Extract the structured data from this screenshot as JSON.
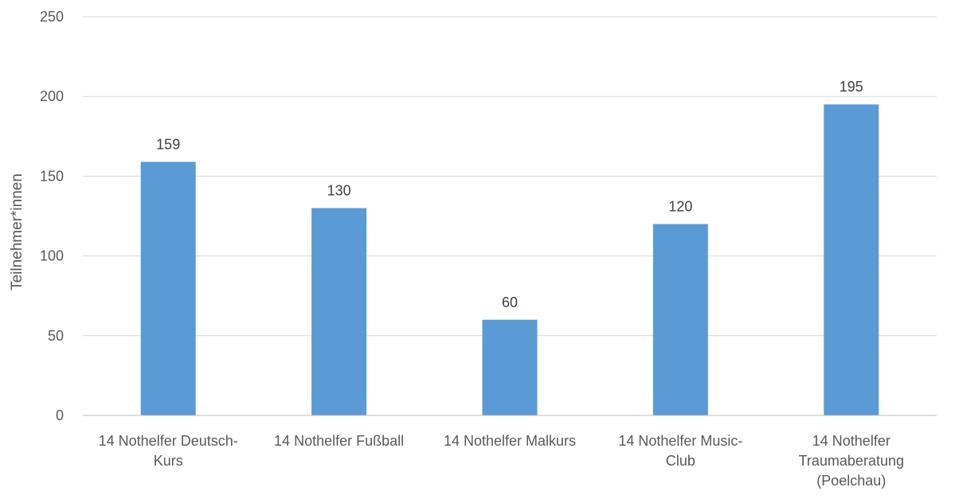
{
  "chart_data": {
    "type": "bar",
    "title": "",
    "xlabel": "",
    "ylabel": "Teilnehmer*innen",
    "ylim": [
      0,
      250
    ],
    "yticks": [
      0,
      50,
      100,
      150,
      200,
      250
    ],
    "grid": true,
    "legend": "none",
    "bar_color": "#5b9bd5",
    "categories": [
      [
        "14 Nothelfer Deutsch-",
        "Kurs"
      ],
      [
        "14 Nothelfer Fußball"
      ],
      [
        "14 Nothelfer Malkurs"
      ],
      [
        "14 Nothelfer Music-",
        "Club"
      ],
      [
        "14 Nothelfer",
        "Traumaberatung",
        "(Poelchau)"
      ]
    ],
    "values": [
      159,
      130,
      60,
      120,
      195
    ]
  }
}
